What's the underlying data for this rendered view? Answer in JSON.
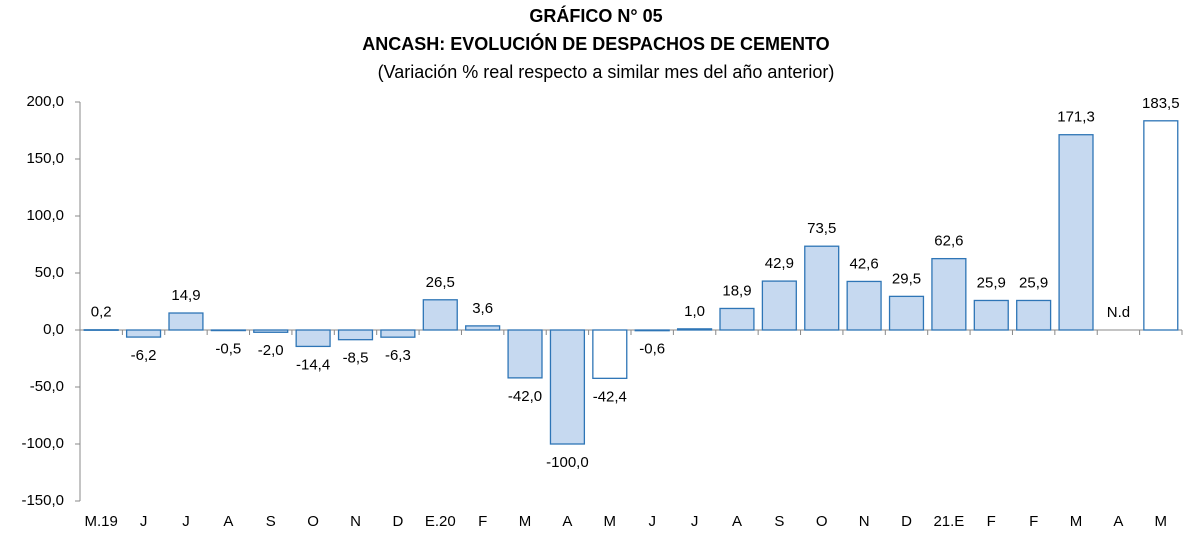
{
  "chart_data": {
    "type": "bar",
    "title": "GRÁFICO N° 05",
    "subtitle": "ANCASH: EVOLUCIÓN DE DESPACHOS DE CEMENTO",
    "note": "(Variación % real respecto a similar mes del año anterior)",
    "categories": [
      "M.19",
      "J",
      "J",
      "A",
      "S",
      "O",
      "N",
      "D",
      "E.20",
      "F",
      "M",
      "A",
      "M",
      "J",
      "J",
      "A",
      "S",
      "O",
      "N",
      "D",
      "21.E",
      "F",
      "F",
      "M",
      "A",
      "M"
    ],
    "values": [
      0.2,
      -6.2,
      14.9,
      -0.5,
      -2.0,
      -14.4,
      -8.5,
      -6.3,
      26.5,
      3.6,
      -42.0,
      -100.0,
      -42.4,
      -0.6,
      1.0,
      18.9,
      42.9,
      73.5,
      42.6,
      29.5,
      62.6,
      25.9,
      25.9,
      171.3,
      null,
      183.5
    ],
    "value_labels": [
      "0,2",
      "-6,2",
      "14,9",
      "-0,5",
      "-2,0",
      "-14,4",
      "-8,5",
      "-6,3",
      "26,5",
      "3,6",
      "-42,0",
      "-100,0",
      "-42,4",
      "-0,6",
      "1,0",
      "18,9",
      "42,9",
      "73,5",
      "42,6",
      "29,5",
      "62,6",
      "25,9",
      "25,9",
      "171,3",
      "N.d",
      "183,5"
    ],
    "colors": [
      "#c6d9f0",
      "#c6d9f0",
      "#c6d9f0",
      "#c6d9f0",
      "#c6d9f0",
      "#c6d9f0",
      "#c6d9f0",
      "#c6d9f0",
      "#c6d9f0",
      "#c6d9f0",
      "#c6d9f0",
      "#c6d9f0",
      "#ffffff",
      "#c6d9f0",
      "#c6d9f0",
      "#c6d9f0",
      "#c6d9f0",
      "#c6d9f0",
      "#c6d9f0",
      "#c6d9f0",
      "#c6d9f0",
      "#c6d9f0",
      "#c6d9f0",
      "#c6d9f0",
      "#c6d9f0",
      "#ffffff"
    ],
    "edge_color": "#2e75b6",
    "ylim": [
      -150,
      200
    ],
    "yticks": [
      {
        "value": -150,
        "label": "-150,0"
      },
      {
        "value": -100,
        "label": "-100,0"
      },
      {
        "value": -50,
        "label": "-50,0"
      },
      {
        "value": 0,
        "label": "0,0"
      },
      {
        "value": 50,
        "label": "50,0"
      },
      {
        "value": 100,
        "label": "100,0"
      },
      {
        "value": 150,
        "label": "150,0"
      },
      {
        "value": 200,
        "label": "200,0"
      }
    ],
    "grid": false
  }
}
